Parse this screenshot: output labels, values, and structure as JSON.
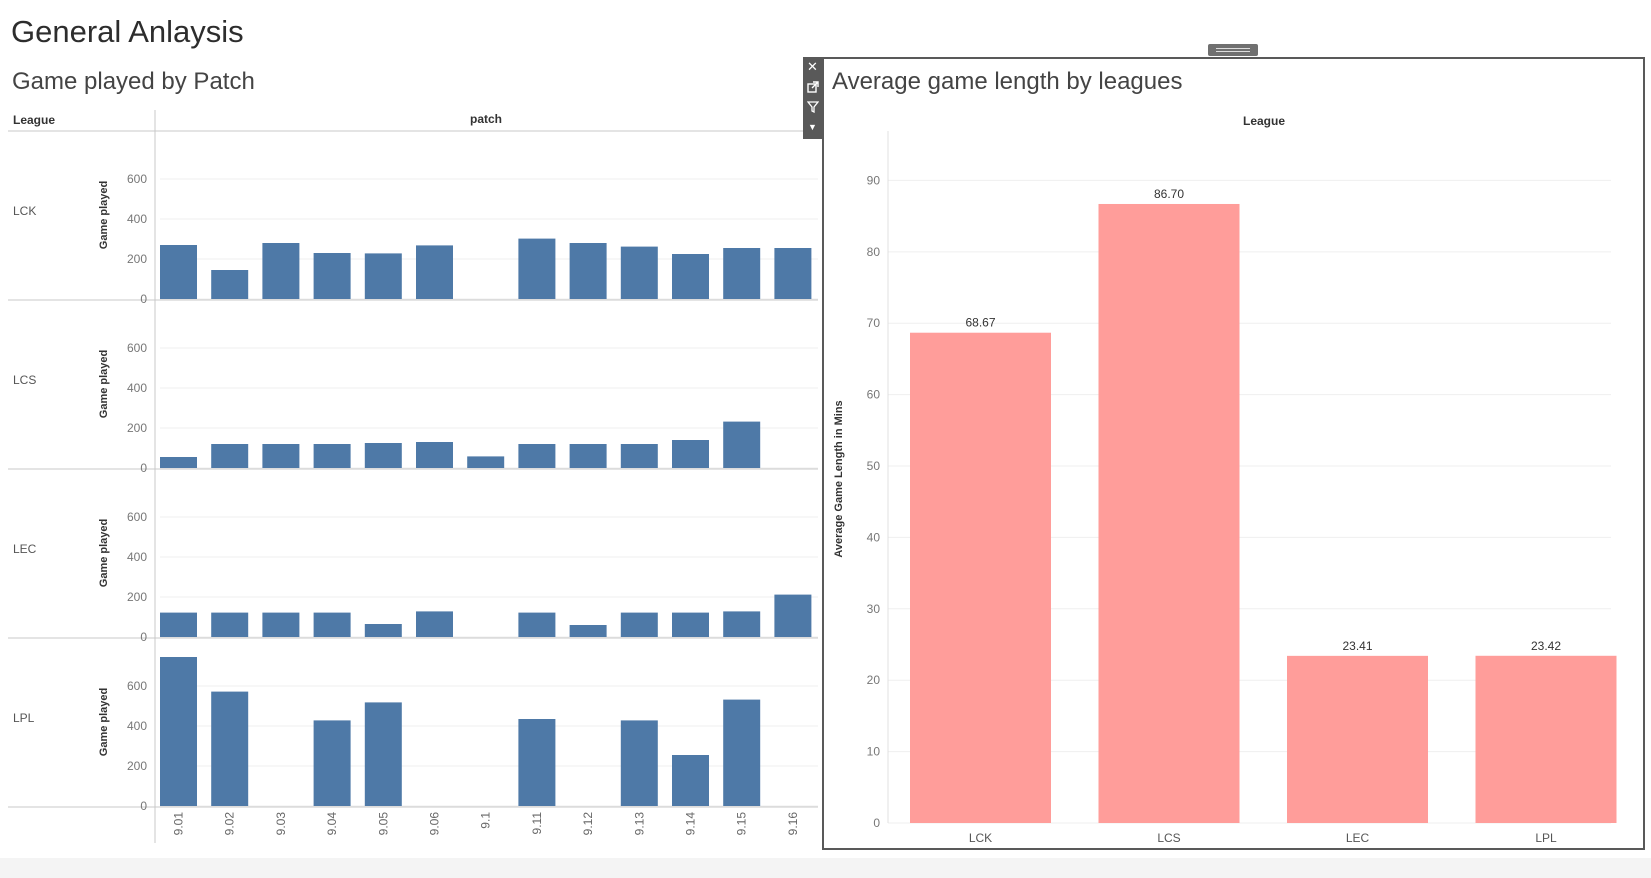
{
  "dashboard": {
    "title": "General Anlaysis"
  },
  "left_sheet": {
    "title": "Game played by Patch",
    "row_header": "League",
    "column_header": "patch"
  },
  "right_sheet": {
    "title": "Average game length by leagues",
    "column_header": "League"
  },
  "toolbar": {
    "close_icon": "close-icon",
    "popout_icon": "popout-icon",
    "filter_icon": "filter-icon",
    "menu_icon": "chevron-down-icon"
  },
  "colors": {
    "left_bars": "#4e79a7",
    "right_bars": "#ff9d9a"
  },
  "chart_data": [
    {
      "type": "bar",
      "title": "Game played by Patch",
      "xlabel": "patch",
      "ylabel": "Game played",
      "categories": [
        "9.01",
        "9.02",
        "9.03",
        "9.04",
        "9.05",
        "9.06",
        "9.1",
        "9.11",
        "9.12",
        "9.13",
        "9.14",
        "9.15",
        "9.16"
      ],
      "ylim": [
        0,
        750
      ],
      "yticks": [
        0,
        200,
        400,
        600
      ],
      "series": [
        {
          "name": "LCK",
          "values": [
            270,
            145,
            280,
            230,
            228,
            268,
            null,
            302,
            280,
            262,
            225,
            255,
            255
          ]
        },
        {
          "name": "LCS",
          "values": [
            55,
            120,
            120,
            120,
            125,
            130,
            58,
            120,
            120,
            120,
            140,
            232,
            null
          ]
        },
        {
          "name": "LEC",
          "values": [
            122,
            122,
            122,
            122,
            65,
            128,
            null,
            122,
            60,
            122,
            122,
            128,
            212
          ]
        },
        {
          "name": "LPL",
          "values": [
            745,
            572,
            null,
            428,
            518,
            null,
            null,
            435,
            null,
            428,
            255,
            532,
            null
          ]
        }
      ]
    },
    {
      "type": "bar",
      "title": "Average game length by leagues",
      "xlabel": "League",
      "ylabel": "Average Game Length in Mins",
      "categories": [
        "LCK",
        "LCS",
        "LEC",
        "LPL"
      ],
      "values": [
        68.67,
        86.7,
        23.41,
        23.42
      ],
      "data_labels": [
        "68.67",
        "86.70",
        "23.41",
        "23.42"
      ],
      "ylim": [
        0,
        93
      ],
      "yticks": [
        0,
        10,
        20,
        30,
        40,
        50,
        60,
        70,
        80,
        90
      ]
    }
  ]
}
